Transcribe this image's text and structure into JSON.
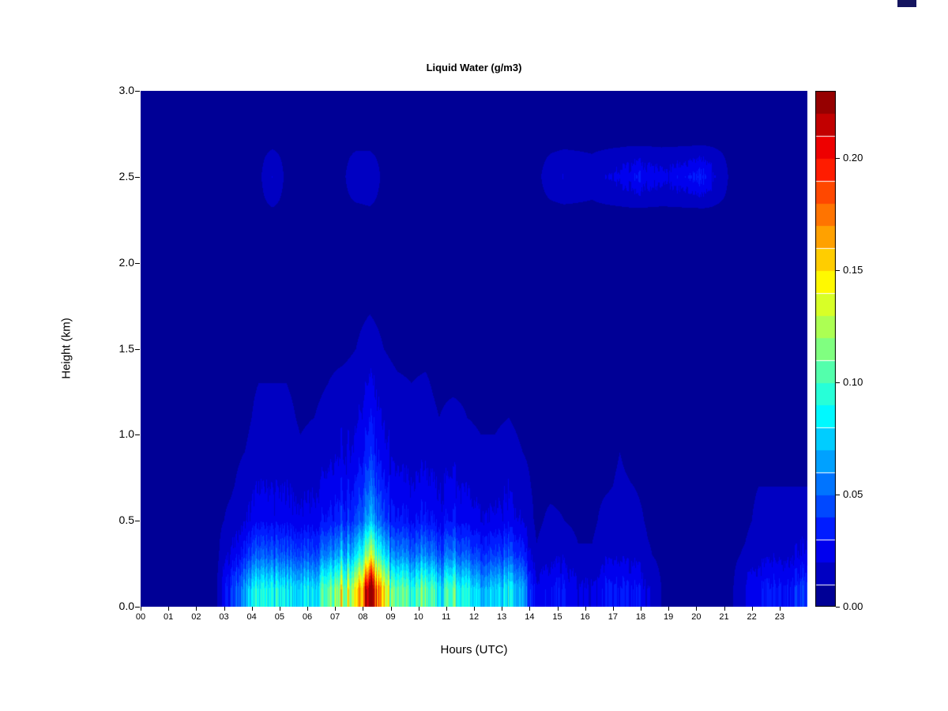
{
  "page": {
    "background": "#ffffff"
  },
  "artifact": {
    "color": "#15155f"
  },
  "chart_data": {
    "type": "heatmap",
    "title": "Liquid Water (g/m3)",
    "xlabel": "Hours (UTC)",
    "ylabel": "Height (km)",
    "xlim": [
      0,
      24
    ],
    "ylim": [
      0,
      3
    ],
    "grid": false,
    "x_tick_labels": [
      "00",
      "01",
      "02",
      "03",
      "04",
      "05",
      "06",
      "07",
      "08",
      "09",
      "10",
      "11",
      "12",
      "13",
      "14",
      "15",
      "16",
      "17",
      "18",
      "19",
      "20",
      "21",
      "22",
      "23"
    ],
    "x_tick_values": [
      0,
      1,
      2,
      3,
      4,
      5,
      6,
      7,
      8,
      9,
      10,
      11,
      12,
      13,
      14,
      15,
      16,
      17,
      18,
      19,
      20,
      21,
      22,
      23
    ],
    "y_tick_labels": [
      "0.0",
      "0.5",
      "1.0",
      "1.5",
      "2.0",
      "2.5",
      "3.0"
    ],
    "y_tick_values": [
      0.0,
      0.5,
      1.0,
      1.5,
      2.0,
      2.5,
      3.0
    ],
    "x_hours_start": 0.25,
    "x_hours_step": 0.5,
    "heights": [
      0.1,
      0.3,
      0.5,
      0.7,
      0.9,
      1.1,
      1.3,
      1.5,
      1.7,
      1.9,
      2.1,
      2.3,
      2.5,
      2.7,
      2.9
    ],
    "background_value": 0.008,
    "values": [
      [
        0.008,
        0.008,
        0.008,
        0.008,
        0.008,
        0.01,
        0.04,
        0.06,
        0.09,
        0.08,
        0.09,
        0.07,
        0.08,
        0.1,
        0.12,
        0.13,
        0.21,
        0.13,
        0.1,
        0.09,
        0.1,
        0.08,
        0.1,
        0.08,
        0.07,
        0.07,
        0.08,
        0.06,
        0.02,
        0.03,
        0.03,
        0.02,
        0.02,
        0.03,
        0.03,
        0.03,
        0.02,
        0.01,
        0.008,
        0.008,
        0.008,
        0.01,
        0.008,
        0.02,
        0.03,
        0.03,
        0.03,
        0.04
      ],
      [
        0.008,
        0.008,
        0.008,
        0.008,
        0.008,
        0.008,
        0.022,
        0.033,
        0.05,
        0.044,
        0.05,
        0.039,
        0.044,
        0.055,
        0.066,
        0.072,
        0.116,
        0.072,
        0.055,
        0.05,
        0.055,
        0.044,
        0.055,
        0.044,
        0.039,
        0.039,
        0.044,
        0.033,
        0.011,
        0.017,
        0.017,
        0.011,
        0.011,
        0.017,
        0.017,
        0.017,
        0.011,
        0.008,
        0.008,
        0.008,
        0.008,
        0.008,
        0.008,
        0.011,
        0.017,
        0.017,
        0.017,
        0.022
      ],
      [
        0.008,
        0.008,
        0.008,
        0.008,
        0.008,
        0.008,
        0.012,
        0.018,
        0.027,
        0.024,
        0.027,
        0.021,
        0.024,
        0.03,
        0.036,
        0.039,
        0.063,
        0.039,
        0.03,
        0.027,
        0.03,
        0.024,
        0.03,
        0.024,
        0.021,
        0.021,
        0.024,
        0.018,
        0.008,
        0.012,
        0.01,
        0.008,
        0.008,
        0.013,
        0.014,
        0.013,
        0.009,
        0.008,
        0.008,
        0.008,
        0.008,
        0.008,
        0.008,
        0.008,
        0.012,
        0.012,
        0.012,
        0.014
      ],
      [
        0.008,
        0.008,
        0.008,
        0.008,
        0.008,
        0.008,
        0.009,
        0.013,
        0.02,
        0.018,
        0.02,
        0.015,
        0.018,
        0.022,
        0.026,
        0.029,
        0.046,
        0.029,
        0.022,
        0.02,
        0.022,
        0.018,
        0.022,
        0.018,
        0.015,
        0.015,
        0.018,
        0.013,
        0.008,
        0.008,
        0.008,
        0.008,
        0.008,
        0.009,
        0.011,
        0.01,
        0.008,
        0.008,
        0.008,
        0.008,
        0.008,
        0.008,
        0.008,
        0.008,
        0.01,
        0.01,
        0.01,
        0.01
      ],
      [
        0.008,
        0.008,
        0.008,
        0.008,
        0.008,
        0.008,
        0.008,
        0.01,
        0.014,
        0.013,
        0.014,
        0.011,
        0.013,
        0.016,
        0.019,
        0.021,
        0.034,
        0.021,
        0.016,
        0.014,
        0.016,
        0.013,
        0.016,
        0.013,
        0.011,
        0.011,
        0.013,
        0.01,
        0.008,
        0.008,
        0.008,
        0.008,
        0.008,
        0.008,
        0.01,
        0.008,
        0.008,
        0.008,
        0.008,
        0.008,
        0.008,
        0.008,
        0.008,
        0.008,
        0.008,
        0.008,
        0.008,
        0.008
      ],
      [
        0.008,
        0.008,
        0.008,
        0.008,
        0.008,
        0.008,
        0.008,
        0.008,
        0.012,
        0.01,
        0.012,
        0.009,
        0.01,
        0.013,
        0.016,
        0.017,
        0.027,
        0.017,
        0.013,
        0.012,
        0.013,
        0.01,
        0.013,
        0.01,
        0.009,
        0.009,
        0.01,
        0.008,
        0.008,
        0.008,
        0.008,
        0.008,
        0.008,
        0.008,
        0.008,
        0.008,
        0.008,
        0.008,
        0.008,
        0.008,
        0.008,
        0.008,
        0.008,
        0.008,
        0.008,
        0.008,
        0.008,
        0.008
      ],
      [
        0.008,
        0.008,
        0.008,
        0.008,
        0.008,
        0.008,
        0.008,
        0.008,
        0.01,
        0.01,
        0.01,
        0.008,
        0.008,
        0.01,
        0.012,
        0.013,
        0.02,
        0.013,
        0.011,
        0.01,
        0.011,
        0.008,
        0.008,
        0.008,
        0.008,
        0.008,
        0.008,
        0.008,
        0.008,
        0.008,
        0.008,
        0.008,
        0.008,
        0.008,
        0.008,
        0.008,
        0.008,
        0.008,
        0.008,
        0.008,
        0.008,
        0.008,
        0.008,
        0.008,
        0.008,
        0.008,
        0.008,
        0.008
      ],
      [
        0.008,
        0.008,
        0.008,
        0.008,
        0.008,
        0.008,
        0.008,
        0.008,
        0.008,
        0.008,
        0.008,
        0.008,
        0.008,
        0.008,
        0.008,
        0.01,
        0.014,
        0.01,
        0.008,
        0.008,
        0.008,
        0.008,
        0.008,
        0.008,
        0.008,
        0.008,
        0.008,
        0.008,
        0.008,
        0.008,
        0.008,
        0.008,
        0.008,
        0.008,
        0.008,
        0.008,
        0.008,
        0.008,
        0.008,
        0.008,
        0.008,
        0.008,
        0.008,
        0.008,
        0.008,
        0.008,
        0.008,
        0.008
      ],
      [
        0.008,
        0.008,
        0.008,
        0.008,
        0.008,
        0.008,
        0.008,
        0.008,
        0.008,
        0.008,
        0.008,
        0.008,
        0.008,
        0.008,
        0.008,
        0.008,
        0.01,
        0.008,
        0.008,
        0.008,
        0.008,
        0.008,
        0.008,
        0.008,
        0.008,
        0.008,
        0.008,
        0.008,
        0.008,
        0.008,
        0.008,
        0.008,
        0.008,
        0.008,
        0.008,
        0.008,
        0.008,
        0.008,
        0.008,
        0.008,
        0.008,
        0.008,
        0.008,
        0.008,
        0.008,
        0.008,
        0.008,
        0.008
      ],
      [
        0.008,
        0.008,
        0.008,
        0.008,
        0.008,
        0.008,
        0.008,
        0.008,
        0.008,
        0.008,
        0.008,
        0.008,
        0.008,
        0.008,
        0.008,
        0.008,
        0.008,
        0.008,
        0.008,
        0.008,
        0.008,
        0.008,
        0.008,
        0.008,
        0.008,
        0.008,
        0.008,
        0.008,
        0.008,
        0.008,
        0.008,
        0.008,
        0.008,
        0.008,
        0.008,
        0.008,
        0.008,
        0.008,
        0.008,
        0.008,
        0.008,
        0.008,
        0.008,
        0.008,
        0.008,
        0.008,
        0.008,
        0.008
      ],
      [
        0.008,
        0.008,
        0.008,
        0.008,
        0.008,
        0.008,
        0.008,
        0.008,
        0.008,
        0.008,
        0.008,
        0.008,
        0.008,
        0.008,
        0.008,
        0.008,
        0.008,
        0.008,
        0.008,
        0.008,
        0.008,
        0.008,
        0.008,
        0.008,
        0.008,
        0.008,
        0.008,
        0.008,
        0.008,
        0.008,
        0.008,
        0.008,
        0.008,
        0.008,
        0.008,
        0.008,
        0.008,
        0.008,
        0.008,
        0.008,
        0.008,
        0.008,
        0.008,
        0.008,
        0.008,
        0.008,
        0.008,
        0.008
      ],
      [
        0.008,
        0.008,
        0.008,
        0.008,
        0.008,
        0.008,
        0.008,
        0.008,
        0.008,
        0.009,
        0.008,
        0.008,
        0.008,
        0.008,
        0.008,
        0.008,
        0.009,
        0.008,
        0.008,
        0.008,
        0.008,
        0.008,
        0.008,
        0.008,
        0.008,
        0.008,
        0.008,
        0.008,
        0.008,
        0.008,
        0.008,
        0.008,
        0.008,
        0.008,
        0.008,
        0.008,
        0.008,
        0.008,
        0.008,
        0.008,
        0.008,
        0.008,
        0.008,
        0.008,
        0.008,
        0.008,
        0.008,
        0.008
      ],
      [
        0.008,
        0.008,
        0.008,
        0.008,
        0.008,
        0.008,
        0.008,
        0.008,
        0.008,
        0.018,
        0.008,
        0.008,
        0.008,
        0.008,
        0.008,
        0.016,
        0.016,
        0.008,
        0.008,
        0.008,
        0.008,
        0.008,
        0.008,
        0.008,
        0.008,
        0.008,
        0.008,
        0.008,
        0.008,
        0.014,
        0.018,
        0.016,
        0.014,
        0.018,
        0.022,
        0.028,
        0.026,
        0.022,
        0.024,
        0.028,
        0.032,
        0.018,
        0.008,
        0.008,
        0.008,
        0.008,
        0.008,
        0.008
      ],
      [
        0.008,
        0.008,
        0.008,
        0.008,
        0.008,
        0.008,
        0.008,
        0.008,
        0.008,
        0.008,
        0.008,
        0.008,
        0.008,
        0.008,
        0.008,
        0.008,
        0.008,
        0.008,
        0.008,
        0.008,
        0.008,
        0.008,
        0.008,
        0.008,
        0.008,
        0.008,
        0.008,
        0.008,
        0.008,
        0.008,
        0.008,
        0.008,
        0.008,
        0.008,
        0.008,
        0.008,
        0.008,
        0.008,
        0.008,
        0.008,
        0.008,
        0.008,
        0.008,
        0.008,
        0.008,
        0.008,
        0.008,
        0.008
      ],
      [
        0.008,
        0.008,
        0.008,
        0.008,
        0.008,
        0.008,
        0.008,
        0.008,
        0.008,
        0.008,
        0.008,
        0.008,
        0.008,
        0.008,
        0.008,
        0.008,
        0.008,
        0.008,
        0.008,
        0.008,
        0.008,
        0.008,
        0.008,
        0.008,
        0.008,
        0.008,
        0.008,
        0.008,
        0.008,
        0.008,
        0.008,
        0.008,
        0.008,
        0.008,
        0.008,
        0.008,
        0.008,
        0.008,
        0.008,
        0.008,
        0.008,
        0.008,
        0.008,
        0.008,
        0.008,
        0.008,
        0.008,
        0.008
      ]
    ],
    "colorbar": {
      "position": "right",
      "vmin": 0.0,
      "vmax": 0.23,
      "step": 0.01,
      "colors": [
        "#000096",
        "#0000C2",
        "#0000EE",
        "#001CFF",
        "#0048FF",
        "#0074FF",
        "#00A1FF",
        "#00CDFF",
        "#00F9FF",
        "#27FFD8",
        "#53FFAC",
        "#80FF80",
        "#ACFF53",
        "#D8FF27",
        "#FFF900",
        "#FFCD00",
        "#FFA100",
        "#FF7400",
        "#FF4800",
        "#FF1C00",
        "#EE0000",
        "#C20000",
        "#960000"
      ],
      "tick_labels": [
        "0.00",
        "0.05",
        "0.10",
        "0.15",
        "0.20"
      ],
      "tick_values": [
        0.0,
        0.05,
        0.1,
        0.15,
        0.2
      ]
    }
  }
}
